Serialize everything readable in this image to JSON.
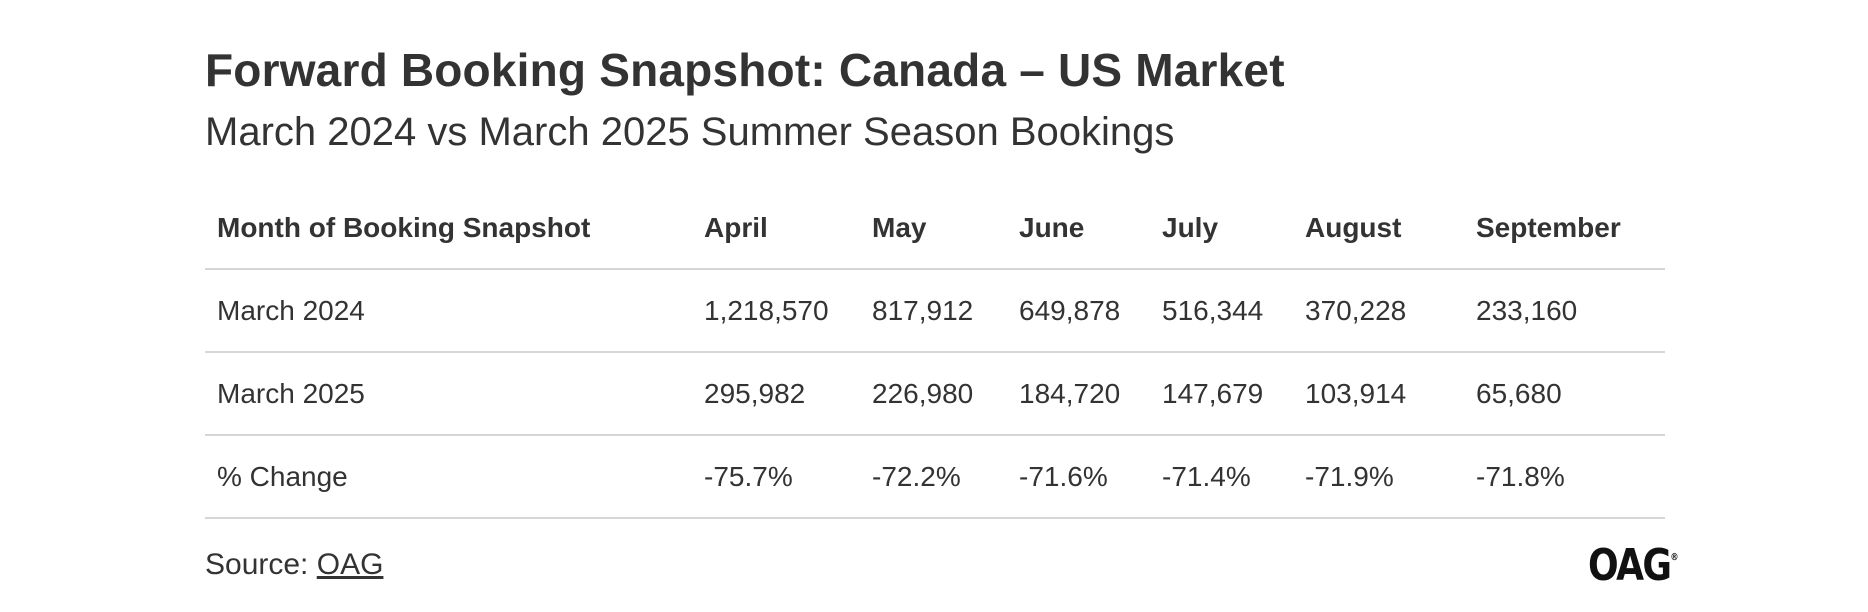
{
  "header": {
    "title": "Forward Booking Snapshot: Canada – US Market",
    "subtitle": "March 2024 vs March 2025 Summer Season Bookings"
  },
  "table": {
    "columns": [
      "Month of Booking Snapshot",
      "April",
      "May",
      "June",
      "July",
      "August",
      "September"
    ],
    "rows": [
      [
        "March 2024",
        "1,218,570",
        "817,912",
        "649,878",
        "516,344",
        "370,228",
        "233,160"
      ],
      [
        "March 2025",
        "295,982",
        "226,980",
        "184,720",
        "147,679",
        "103,914",
        "65,680"
      ],
      [
        "% Change",
        "-75.7%",
        "-72.2%",
        "-71.6%",
        "-71.4%",
        "-71.9%",
        "-71.8%"
      ]
    ]
  },
  "chart_data": {
    "type": "table",
    "title": "Forward Booking Snapshot: Canada – US Market",
    "subtitle": "March 2024 vs March 2025 Summer Season Bookings",
    "categories": [
      "April",
      "May",
      "June",
      "July",
      "August",
      "September"
    ],
    "series": [
      {
        "name": "March 2024",
        "values": [
          1218570,
          817912,
          649878,
          516344,
          370228,
          233160
        ]
      },
      {
        "name": "March 2025",
        "values": [
          295982,
          226980,
          184720,
          147679,
          103914,
          65680
        ]
      },
      {
        "name": "% Change",
        "values": [
          -75.7,
          -72.2,
          -71.6,
          -71.4,
          -71.9,
          -71.8
        ]
      }
    ]
  },
  "footer": {
    "source_prefix": "Source: ",
    "source_link": "OAG"
  },
  "logo": {
    "text": "OAG",
    "mark": "®"
  }
}
